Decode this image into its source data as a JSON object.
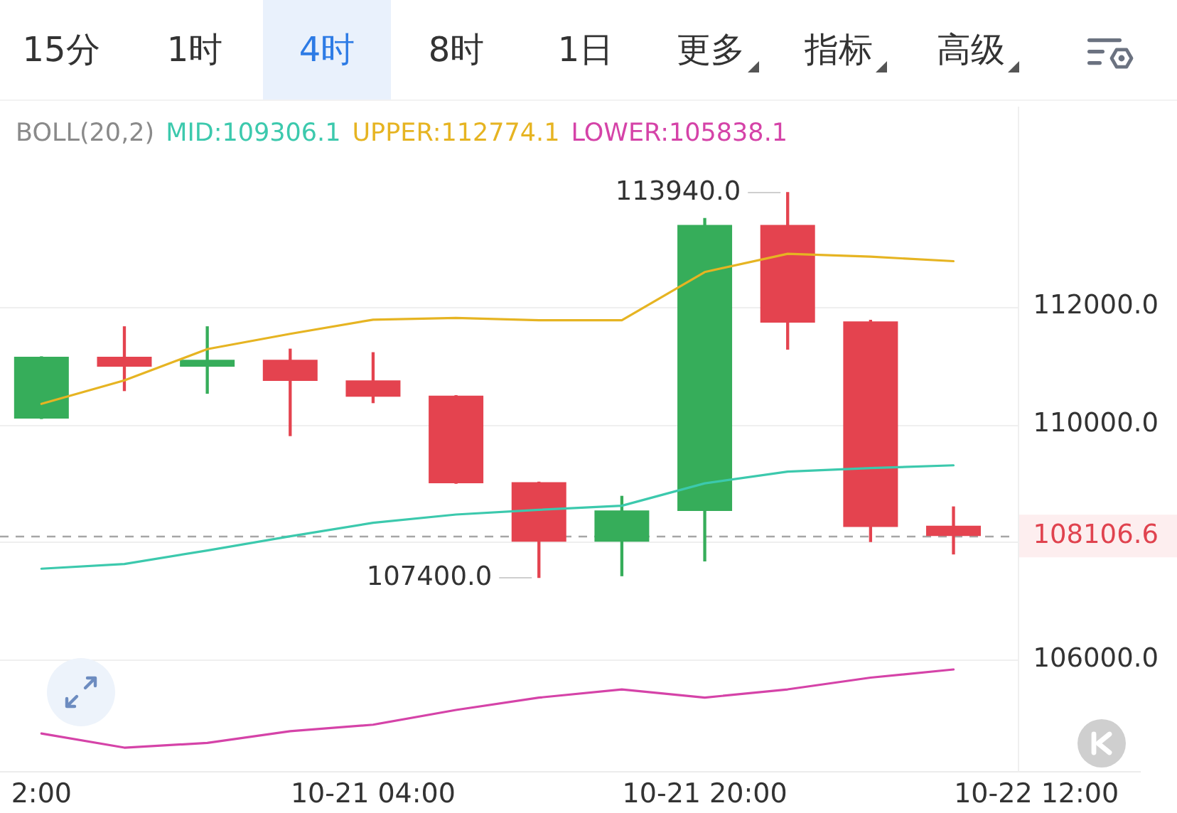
{
  "chart_data": {
    "type": "candlestick",
    "x": [
      "--10-20T12:00",
      "--10-20T16:00",
      "--10-20T20:00",
      "--10-21T00:00",
      "--10-21T04:00",
      "--10-21T08:00",
      "--10-21T12:00",
      "--10-21T16:00",
      "--10-21T20:00",
      "--10-22T00:00",
      "--10-22T04:00",
      "--10-22T08:00"
    ],
    "ohlc": [
      [
        110100,
        111150,
        110100,
        111150
      ],
      [
        111150,
        111660,
        110575,
        110980
      ],
      [
        110980,
        111660,
        110530,
        111100
      ],
      [
        111100,
        111280,
        109810,
        110740
      ],
      [
        110750,
        111220,
        110370,
        110470
      ],
      [
        110490,
        110490,
        109000,
        109000
      ],
      [
        109020,
        109020,
        107400,
        108010
      ],
      [
        108010,
        108780,
        107430,
        108540
      ],
      [
        108530,
        113500,
        107680,
        113390
      ],
      [
        113390,
        113940,
        111280,
        111730
      ],
      [
        111750,
        111770,
        108010,
        108260
      ],
      [
        108280,
        108600,
        107800,
        108106.6
      ]
    ],
    "colors": [
      "#36ad5a",
      "#e4434f",
      "#36ad5a",
      "#e4434f",
      "#e4434f",
      "#e4434f",
      "#e4434f",
      "#36ad5a",
      "#36ad5a",
      "#e4434f",
      "#e4434f",
      "#e4434f"
    ],
    "series": [
      {
        "type": "line",
        "name": "MID:109306.1",
        "color": "#3cc9ad",
        "values": [
          107550,
          107630,
          107860,
          108100,
          108330,
          108470,
          108550,
          108620,
          109000,
          109200,
          109260,
          109306.1
        ]
      },
      {
        "type": "line",
        "name": "UPPER:112774.1",
        "color": "#e6b422",
        "values": [
          110350,
          110750,
          111280,
          111540,
          111780,
          111810,
          111770,
          111770,
          112590,
          112900,
          112850,
          112774.1
        ]
      },
      {
        "type": "line",
        "name": "LOWER:105838.1",
        "color": "#d543a8",
        "values": [
          104750,
          104510,
          104590,
          104790,
          104900,
          105150,
          105360,
          105500,
          105360,
          105500,
          105700,
          105838.1
        ]
      }
    ],
    "xlim": [
      "--10-20T10:00",
      "--10-22T17:00"
    ],
    "xticks": [
      {
        "value": "--10-20T12:00",
        "label": "2:00"
      },
      {
        "value": "--10-21T04:00",
        "label": "10-21 04:00"
      },
      {
        "value": "--10-21T20:00",
        "label": "10-21 20:00"
      },
      {
        "value": "--10-22T12:00",
        "label": "10-22 12:00"
      }
    ],
    "ylim": [
      104100,
      115400
    ],
    "yticks": [
      {
        "value": 106000,
        "label": "106000.0"
      },
      {
        "value": 108000,
        "label": null
      },
      {
        "value": 108106.6,
        "label": "108106.6"
      },
      {
        "value": 110000,
        "label": "110000.0"
      },
      {
        "value": 112000,
        "label": "112000.0"
      }
    ],
    "grid": "y",
    "legend": "top left",
    "legend_title": "BOLL(20,2)",
    "ref_lines": [
      {
        "axis": "y",
        "value": 108106.6,
        "color": "#a6a6a6",
        "line_style": "dashed"
      }
    ],
    "annotations": [
      "15分",
      "1时",
      "4时",
      "8时",
      "1日",
      "更多",
      "指标",
      "高级",
      {
        "text": "113940.0",
        "x": "--10-22T00:00",
        "y": 113940
      },
      {
        "text": "107400.0",
        "x": "--10-21T12:00",
        "y": 107400
      }
    ]
  }
}
